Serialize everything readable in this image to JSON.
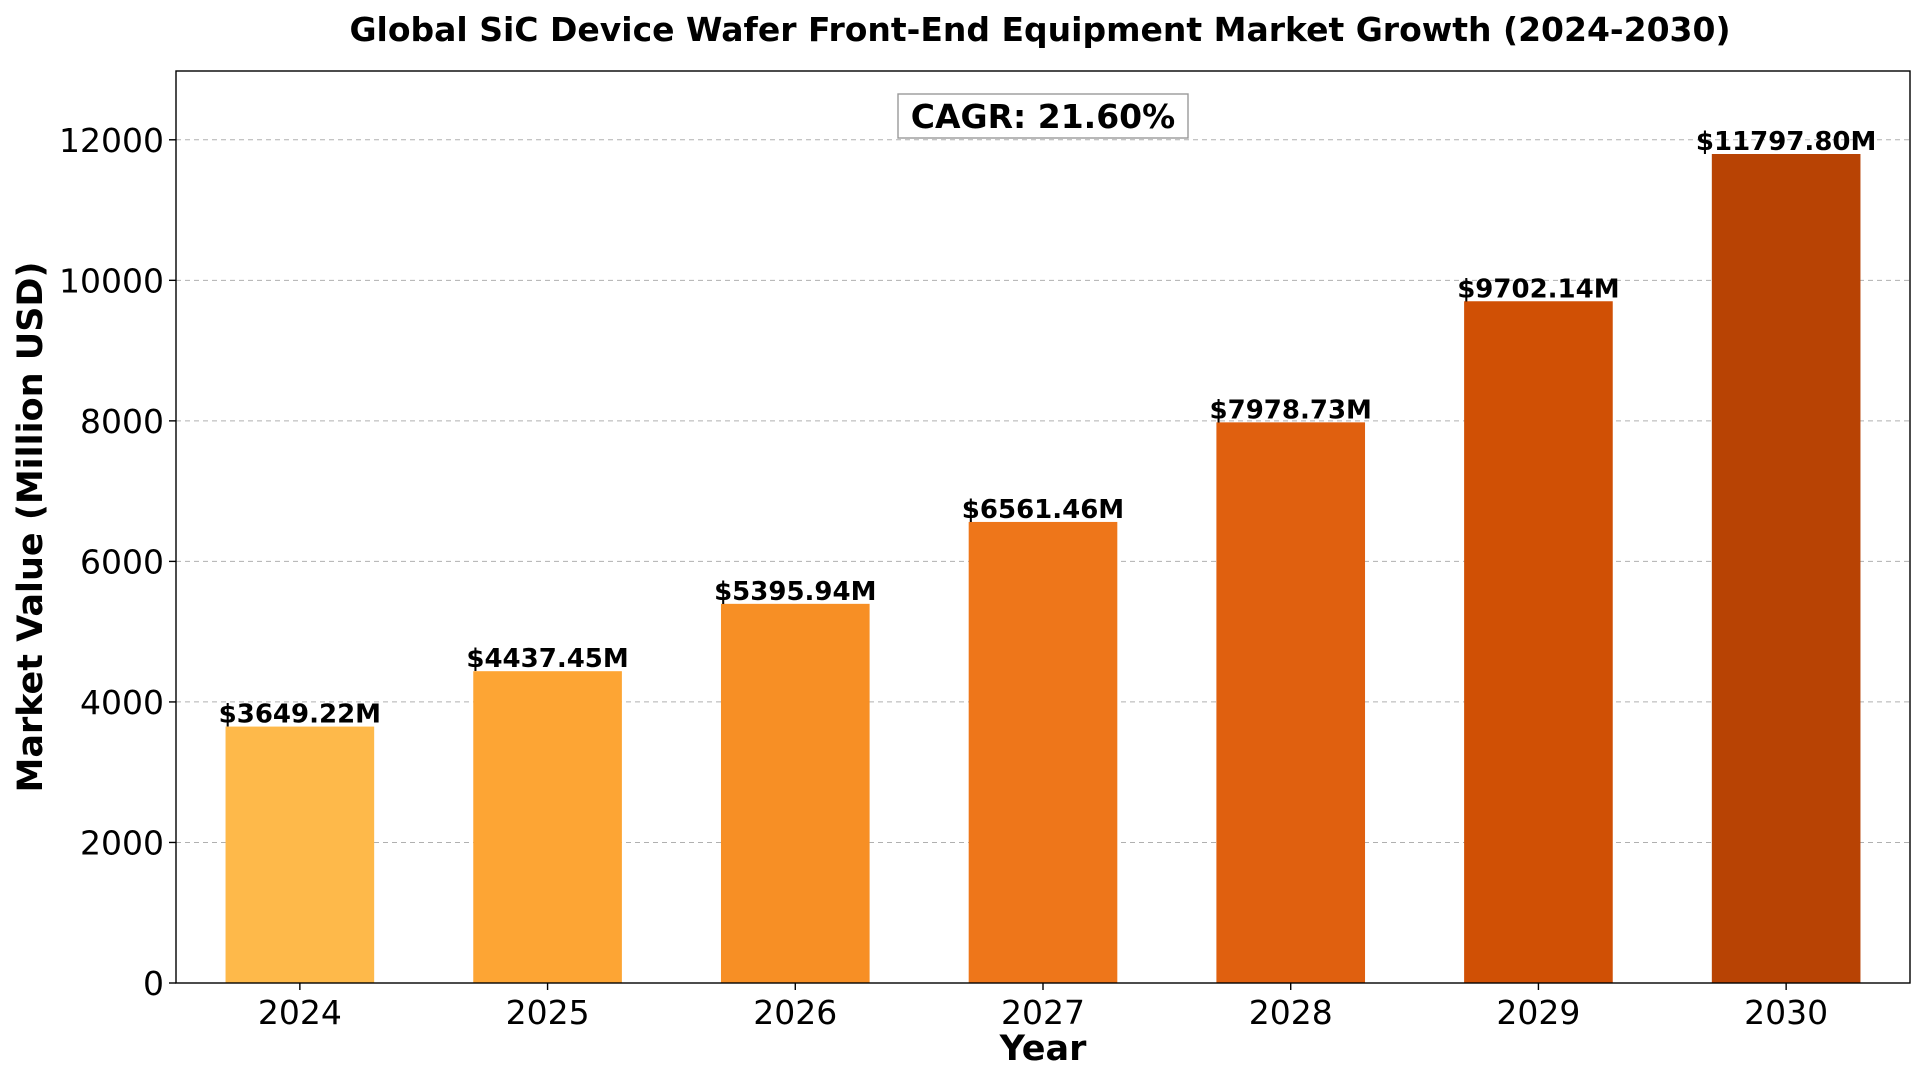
{
  "chart_data": {
    "type": "bar",
    "title": "Global SiC Device Wafer Front-End Equipment Market Growth (2024-2030)",
    "xlabel": "Year",
    "ylabel": "Market Value (Million USD)",
    "categories": [
      "2024",
      "2025",
      "2026",
      "2027",
      "2028",
      "2029",
      "2030"
    ],
    "values": [
      3649.22,
      4437.45,
      5395.94,
      6561.46,
      7978.73,
      9702.14,
      11797.8
    ],
    "data_labels": [
      "$3649.22M",
      "$4437.45M",
      "$5395.94M",
      "$6561.46M",
      "$7978.73M",
      "$9702.14M",
      "$11797.80M"
    ],
    "colors": [
      "#feb94a",
      "#fda534",
      "#f78f25",
      "#ee761a",
      "#e0600f",
      "#d05005",
      "#b84304"
    ],
    "ylim": [
      0,
      12979
    ],
    "yticks": [
      0,
      2000,
      4000,
      6000,
      8000,
      10000,
      12000
    ],
    "grid": "y-dashed",
    "annotation": "CAGR: 21.60%"
  }
}
